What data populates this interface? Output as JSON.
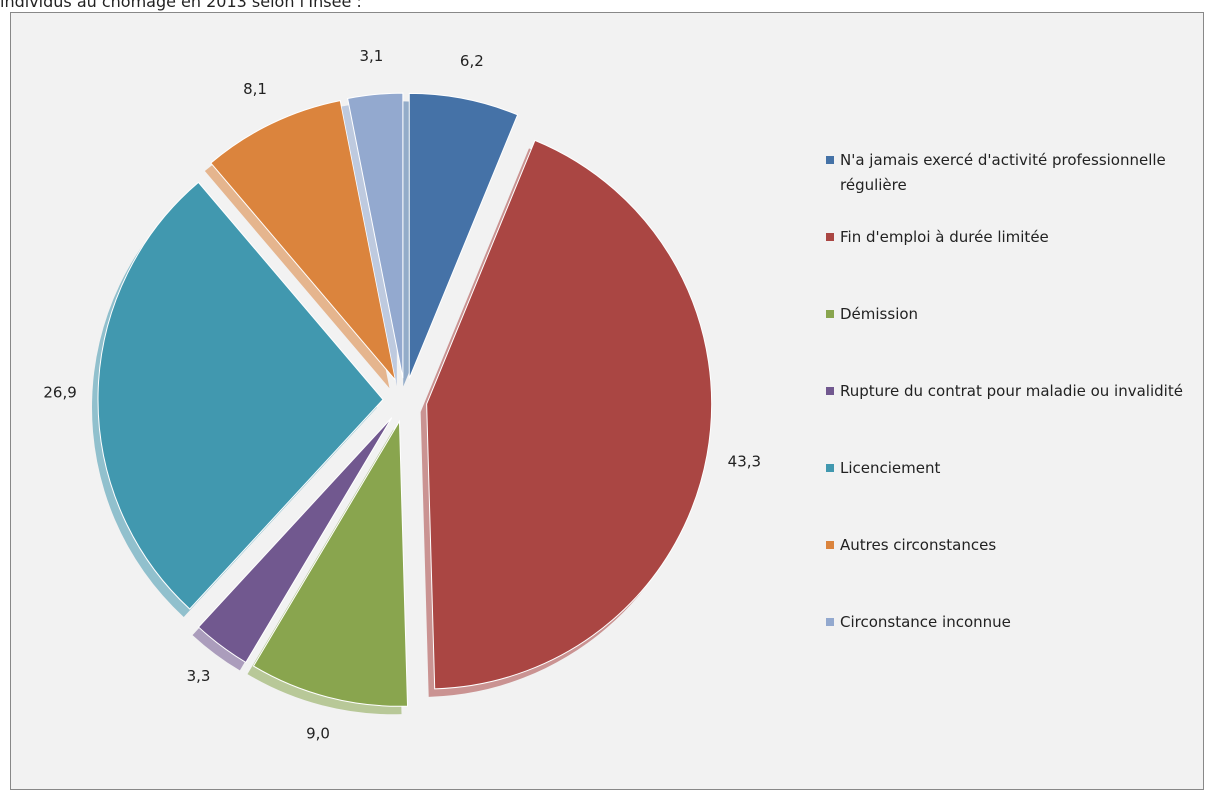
{
  "chart_data": {
    "type": "pie",
    "title": "individus au chômage en 2013 selon l'Insee :",
    "categories": [
      "N'a jamais exercé d'activité professionnelle régulière",
      "Fin d'emploi à durée limitée",
      "Démission",
      "Rupture du contrat pour maladie ou invalidité",
      "Licenciement",
      "Autres circonstances",
      "Circonstance inconnue"
    ],
    "values": [
      6.2,
      43.3,
      9.0,
      3.3,
      26.9,
      8.1,
      3.1
    ],
    "value_labels": [
      "6,2",
      "43,3",
      "9,0",
      "3,3",
      "26,9",
      "8,1",
      "3,1"
    ],
    "colors": [
      "#4572a7",
      "#aa4643",
      "#89a54e",
      "#71588f",
      "#4198af",
      "#db843d",
      "#93a9cf"
    ],
    "legend": "right"
  }
}
